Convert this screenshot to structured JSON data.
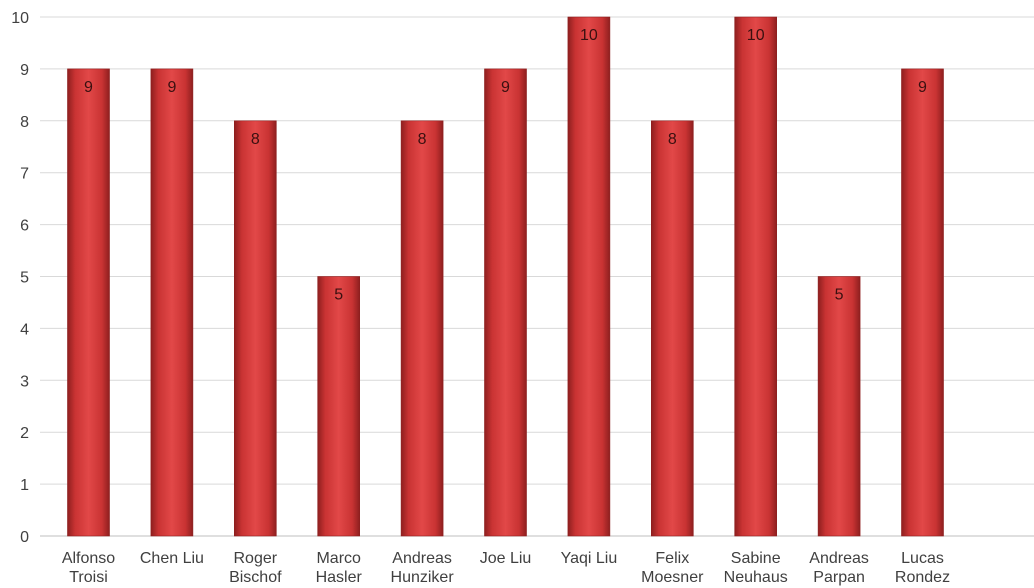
{
  "chart_data": {
    "type": "bar",
    "categories": [
      [
        "Alfonso",
        "Troisi"
      ],
      [
        "Chen Liu"
      ],
      [
        "Roger",
        "Bischof"
      ],
      [
        "Marco",
        "Hasler"
      ],
      [
        "Andreas",
        "Hunziker"
      ],
      [
        "Joe Liu"
      ],
      [
        "Yaqi Liu"
      ],
      [
        "Felix",
        "Moesner"
      ],
      [
        "Sabine",
        "Neuhaus"
      ],
      [
        "Andreas",
        "Parpan"
      ],
      [
        "Lucas",
        "Rondez"
      ]
    ],
    "values": [
      9,
      9,
      8,
      5,
      8,
      9,
      10,
      8,
      10,
      5,
      9
    ],
    "ylim": [
      0,
      10
    ],
    "yticks": [
      0,
      1,
      2,
      3,
      4,
      5,
      6,
      7,
      8,
      9,
      10
    ],
    "grid": true,
    "legend": "none",
    "title": "",
    "xlabel": "",
    "ylabel": "",
    "bar_color": "#d63a3a",
    "bar_color_dark": "#8e1f1f"
  }
}
